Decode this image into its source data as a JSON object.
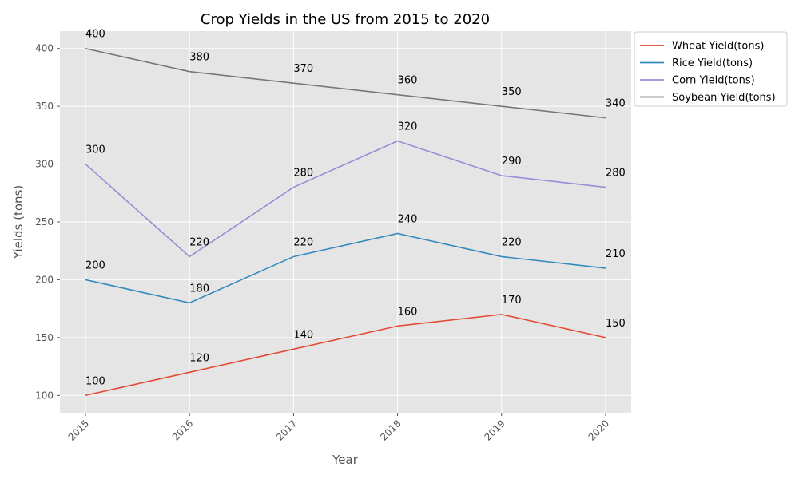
{
  "chart_data": {
    "type": "line",
    "title": "Crop Yields in the US from 2015 to 2020",
    "xlabel": "Year",
    "ylabel": "Yields (tons)",
    "categories": [
      "2015",
      "2016",
      "2017",
      "2018",
      "2019",
      "2020"
    ],
    "ylim": [
      85,
      415
    ],
    "yticks": [
      100,
      150,
      200,
      250,
      300,
      350,
      400
    ],
    "grid": true,
    "legend_position": "outside-top-right",
    "series": [
      {
        "name": "Wheat Yield(tons)",
        "color": "#e24a33",
        "values": [
          100,
          120,
          140,
          160,
          170,
          150
        ]
      },
      {
        "name": "Rice Yield(tons)",
        "color": "#348abd",
        "values": [
          200,
          180,
          220,
          240,
          220,
          210
        ]
      },
      {
        "name": "Corn Yield(tons)",
        "color": "#988ed5",
        "values": [
          300,
          220,
          280,
          320,
          290,
          280
        ]
      },
      {
        "name": "Soybean Yield(tons)",
        "color": "#777777",
        "values": [
          400,
          380,
          370,
          360,
          350,
          340
        ]
      }
    ]
  }
}
